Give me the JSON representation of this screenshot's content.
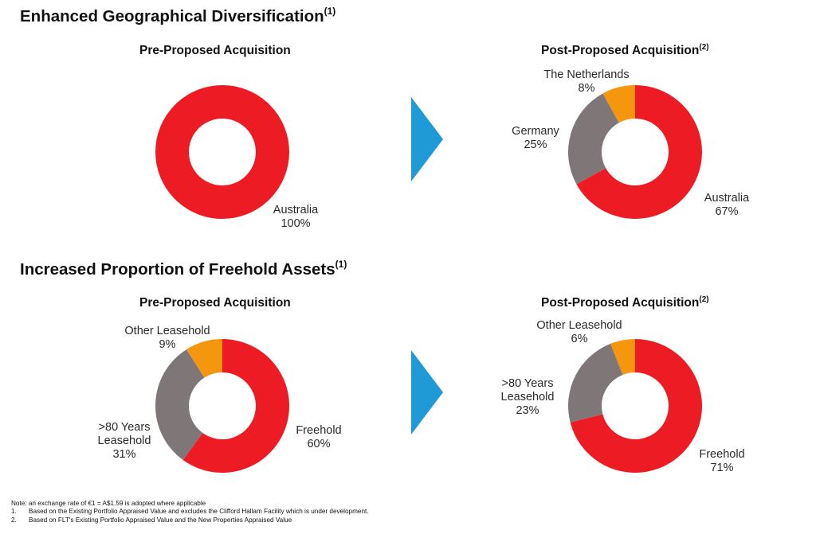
{
  "sections": [
    {
      "title": "Enhanced Geographical Diversification",
      "superscript": "(1)"
    },
    {
      "title": "Increased Proportion of Freehold Assets",
      "superscript": "(1)"
    }
  ],
  "arrow_color": "#1f9ad6",
  "chart_data": [
    {
      "type": "pie",
      "donut": true,
      "title": "Pre-Proposed Acquisition",
      "title_superscript": "",
      "slices": [
        {
          "label": "Australia",
          "label_lines": [
            "Australia"
          ],
          "value": 100,
          "value_text": "100%",
          "color": "#ed1c24"
        }
      ]
    },
    {
      "type": "pie",
      "donut": true,
      "title": "Post-Proposed Acquisition",
      "title_superscript": "(2)",
      "slices": [
        {
          "label": "Australia",
          "label_lines": [
            "Australia"
          ],
          "value": 67,
          "value_text": "67%",
          "color": "#ed1c24"
        },
        {
          "label": "Germany",
          "label_lines": [
            "Germany"
          ],
          "value": 25,
          "value_text": "25%",
          "color": "#7f7777"
        },
        {
          "label": "The Netherlands",
          "label_lines": [
            "The Netherlands"
          ],
          "value": 8,
          "value_text": "8%",
          "color": "#f5960f"
        }
      ]
    },
    {
      "type": "pie",
      "donut": true,
      "title": "Pre-Proposed Acquisition",
      "title_superscript": "",
      "slices": [
        {
          "label": "Freehold",
          "label_lines": [
            "Freehold"
          ],
          "value": 60,
          "value_text": "60%",
          "color": "#ed1c24"
        },
        {
          "label": ">80 Years Leasehold",
          "label_lines": [
            ">80 Years",
            "Leasehold"
          ],
          "value": 31,
          "value_text": "31%",
          "color": "#7f7777"
        },
        {
          "label": "Other Leasehold",
          "label_lines": [
            "Other Leasehold"
          ],
          "value": 9,
          "value_text": "9%",
          "color": "#f5960f"
        }
      ]
    },
    {
      "type": "pie",
      "donut": true,
      "title": "Post-Proposed Acquisition",
      "title_superscript": "(2)",
      "slices": [
        {
          "label": "Freehold",
          "label_lines": [
            "Freehold"
          ],
          "value": 71,
          "value_text": "71%",
          "color": "#ed1c24"
        },
        {
          "label": ">80 Years Leasehold",
          "label_lines": [
            ">80 Years",
            "Leasehold"
          ],
          "value": 23,
          "value_text": "23%",
          "color": "#7f7777"
        },
        {
          "label": "Other Leasehold",
          "label_lines": [
            "Other Leasehold"
          ],
          "value": 6,
          "value_text": "6%",
          "color": "#f5960f"
        }
      ]
    }
  ],
  "notes": {
    "intro": "Note: an exchange rate of €1 = A$1.59 is adopted where applicable",
    "items": [
      {
        "num": "1.",
        "text": "Based on the Existing Portfolio Appraised Value and excludes the Clifford Hallam Facility which is under development."
      },
      {
        "num": "2.",
        "text": "Based on FLT's Existing Portfolio Appraised Value and the New Properties Appraised Value"
      }
    ]
  }
}
